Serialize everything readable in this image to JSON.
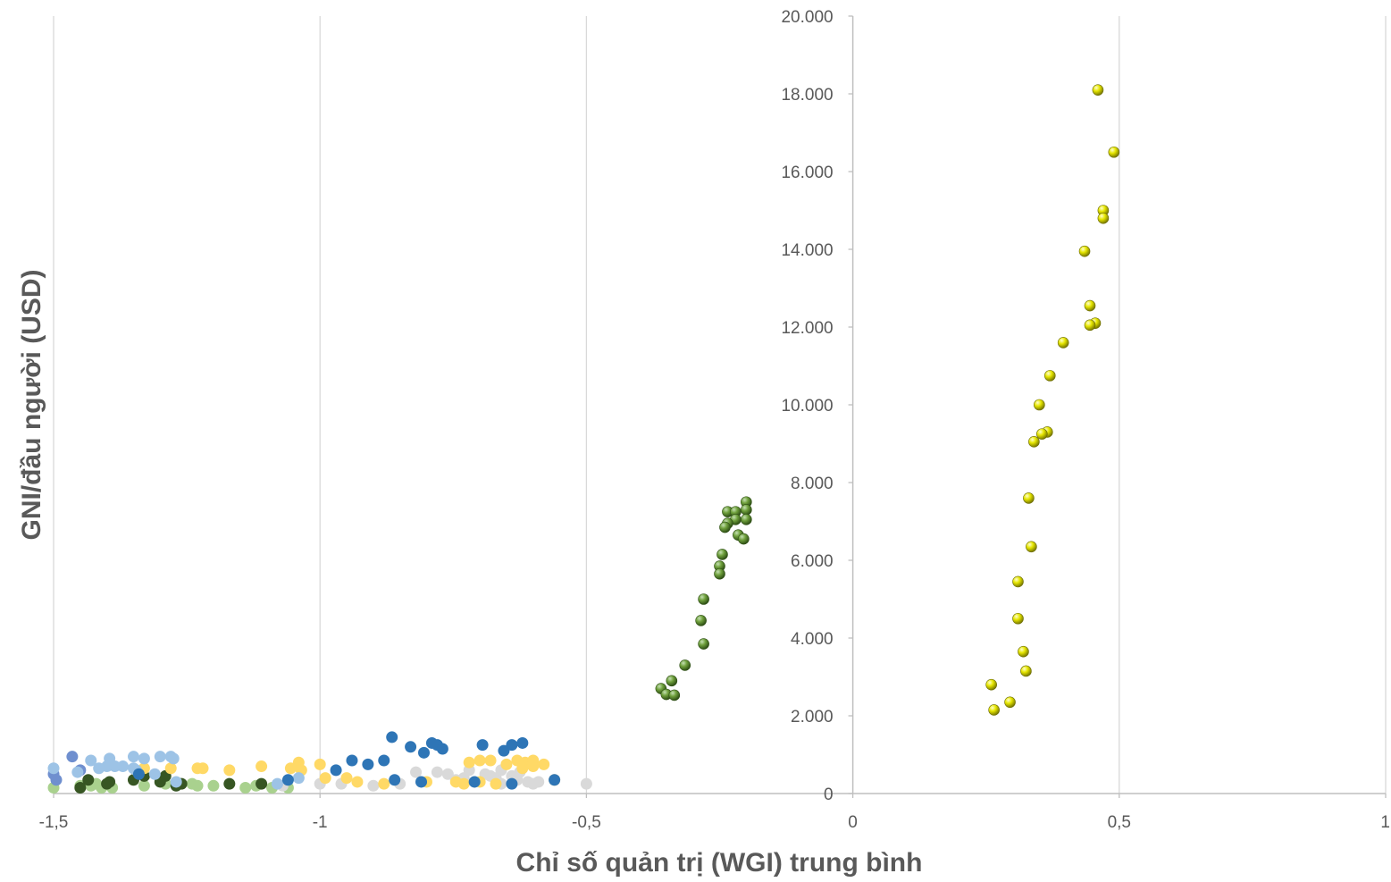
{
  "chart_data": {
    "type": "scatter",
    "title": "",
    "xlabel": "Chỉ số quản trị (WGI) trung bình",
    "ylabel": "GNI/đầu người (USD)",
    "xlim": [
      -1.5,
      1
    ],
    "ylim": [
      0,
      20000
    ],
    "x_ticks": [
      "-1,5",
      "-1",
      "-0,5",
      "0",
      "0,5",
      "1"
    ],
    "y_ticks": [
      "0",
      "2.000",
      "4.000",
      "6.000",
      "8.000",
      "10.000",
      "12.000",
      "14.000",
      "16.000",
      "18.000",
      "20.000"
    ],
    "grid": "vertical",
    "legend": "none",
    "series": [
      {
        "color": "#C9A700",
        "marker": "sphere-yellow",
        "points": [
          [
            0.46,
            18100
          ],
          [
            0.49,
            16500
          ],
          [
            0.47,
            15000
          ],
          [
            0.47,
            14800
          ],
          [
            0.435,
            13950
          ],
          [
            0.445,
            12550
          ],
          [
            0.455,
            12100
          ],
          [
            0.445,
            12050
          ],
          [
            0.395,
            11600
          ],
          [
            0.37,
            10750
          ],
          [
            0.35,
            10000
          ],
          [
            0.365,
            9300
          ],
          [
            0.355,
            9250
          ],
          [
            0.34,
            9050
          ],
          [
            0.33,
            7600
          ],
          [
            0.335,
            6350
          ],
          [
            0.31,
            5450
          ],
          [
            0.31,
            4500
          ],
          [
            0.32,
            3650
          ],
          [
            0.325,
            3150
          ],
          [
            0.26,
            2800
          ],
          [
            0.295,
            2350
          ],
          [
            0.265,
            2150
          ]
        ]
      },
      {
        "color": "#548235",
        "marker": "sphere-green",
        "points": [
          [
            -0.2,
            7500
          ],
          [
            -0.2,
            7300
          ],
          [
            -0.235,
            7250
          ],
          [
            -0.22,
            7250
          ],
          [
            -0.2,
            7050
          ],
          [
            -0.22,
            7050
          ],
          [
            -0.235,
            6950
          ],
          [
            -0.24,
            6850
          ],
          [
            -0.215,
            6650
          ],
          [
            -0.205,
            6550
          ],
          [
            -0.245,
            6150
          ],
          [
            -0.25,
            5850
          ],
          [
            -0.25,
            5650
          ],
          [
            -0.28,
            5000
          ],
          [
            -0.285,
            4450
          ],
          [
            -0.28,
            3850
          ],
          [
            -0.315,
            3300
          ],
          [
            -0.34,
            2900
          ],
          [
            -0.36,
            2700
          ],
          [
            -0.35,
            2550
          ],
          [
            -0.335,
            2530
          ]
        ]
      },
      {
        "color": "#2E75B6",
        "marker": "dot",
        "points": [
          [
            -0.865,
            1450
          ],
          [
            -0.62,
            1300
          ],
          [
            -0.79,
            1300
          ],
          [
            -0.64,
            1250
          ],
          [
            -0.78,
            1250
          ],
          [
            -0.695,
            1250
          ],
          [
            -0.83,
            1200
          ],
          [
            -0.77,
            1150
          ],
          [
            -0.655,
            1100
          ],
          [
            -0.805,
            1050
          ],
          [
            -0.88,
            850
          ],
          [
            -0.94,
            850
          ],
          [
            -0.91,
            750
          ],
          [
            -0.97,
            600
          ],
          [
            -0.56,
            350
          ],
          [
            -0.86,
            350
          ],
          [
            -0.81,
            300
          ],
          [
            -0.64,
            250
          ],
          [
            -0.71,
            300
          ],
          [
            -1.06,
            350
          ],
          [
            -1.34,
            500
          ]
        ]
      },
      {
        "color": "#9DC3E6",
        "marker": "dot",
        "points": [
          [
            -1.35,
            950
          ],
          [
            -1.3,
            950
          ],
          [
            -1.28,
            950
          ],
          [
            -1.395,
            900
          ],
          [
            -1.33,
            900
          ],
          [
            -1.275,
            900
          ],
          [
            -1.43,
            850
          ],
          [
            -1.4,
            700
          ],
          [
            -1.385,
            700
          ],
          [
            -1.37,
            700
          ],
          [
            -1.35,
            650
          ],
          [
            -1.415,
            650
          ],
          [
            -1.455,
            550
          ],
          [
            -1.5,
            650
          ],
          [
            -1.345,
            600
          ],
          [
            -1.31,
            500
          ],
          [
            -1.08,
            250
          ],
          [
            -1.27,
            300
          ],
          [
            -1.04,
            400
          ]
        ]
      },
      {
        "color": "#6F8FCF",
        "marker": "dot",
        "points": [
          [
            -1.465,
            950
          ],
          [
            -1.45,
            600
          ],
          [
            -1.5,
            500
          ],
          [
            -1.495,
            350
          ]
        ]
      },
      {
        "color": "#FFD966",
        "marker": "dot",
        "points": [
          [
            -1.28,
            650
          ],
          [
            -1.23,
            650
          ],
          [
            -1.22,
            650
          ],
          [
            -1.17,
            600
          ],
          [
            -1.11,
            700
          ],
          [
            -1.04,
            800
          ],
          [
            -1.0,
            750
          ],
          [
            -1.055,
            650
          ],
          [
            -1.035,
            600
          ],
          [
            -0.95,
            400
          ],
          [
            -0.93,
            300
          ],
          [
            -0.88,
            250
          ],
          [
            -0.8,
            300
          ],
          [
            -0.745,
            300
          ],
          [
            -0.73,
            250
          ],
          [
            -0.72,
            800
          ],
          [
            -0.7,
            850
          ],
          [
            -0.68,
            850
          ],
          [
            -0.63,
            850
          ],
          [
            -0.615,
            800
          ],
          [
            -0.6,
            850
          ],
          [
            -0.58,
            750
          ],
          [
            -0.6,
            700
          ],
          [
            -0.62,
            650
          ],
          [
            -0.65,
            750
          ],
          [
            -0.56,
            350
          ],
          [
            -0.67,
            250
          ],
          [
            -0.7,
            300
          ],
          [
            -0.99,
            400
          ],
          [
            -1.33,
            650
          ]
        ]
      },
      {
        "color": "#D9D9D9",
        "marker": "dot",
        "points": [
          [
            -0.5,
            250
          ],
          [
            -0.56,
            350
          ],
          [
            -0.6,
            250
          ],
          [
            -0.61,
            300
          ],
          [
            -0.625,
            550
          ],
          [
            -0.64,
            450
          ],
          [
            -0.67,
            400
          ],
          [
            -0.69,
            500
          ],
          [
            -0.72,
            600
          ],
          [
            -0.73,
            400
          ],
          [
            -0.745,
            350
          ],
          [
            -0.78,
            550
          ],
          [
            -0.82,
            550
          ],
          [
            -0.85,
            250
          ],
          [
            -0.9,
            200
          ],
          [
            -0.96,
            250
          ],
          [
            -1.0,
            250
          ],
          [
            -1.07,
            200
          ],
          [
            -0.59,
            300
          ],
          [
            -0.63,
            350
          ],
          [
            -0.66,
            250
          ],
          [
            -0.71,
            300
          ],
          [
            -0.76,
            500
          ],
          [
            -0.66,
            600
          ],
          [
            -0.68,
            450
          ]
        ]
      },
      {
        "color": "#375623",
        "marker": "dot",
        "points": [
          [
            -1.29,
            450
          ],
          [
            -1.33,
            450
          ],
          [
            -1.35,
            350
          ],
          [
            -1.395,
            300
          ],
          [
            -1.435,
            350
          ],
          [
            -1.17,
            250
          ],
          [
            -1.11,
            250
          ],
          [
            -1.26,
            250
          ],
          [
            -1.4,
            250
          ],
          [
            -1.45,
            150
          ],
          [
            -1.3,
            300
          ],
          [
            -1.27,
            200
          ]
        ]
      },
      {
        "color": "#A9D18E",
        "marker": "dot",
        "points": [
          [
            -1.5,
            150
          ],
          [
            -1.45,
            200
          ],
          [
            -1.43,
            200
          ],
          [
            -1.41,
            150
          ],
          [
            -1.39,
            150
          ],
          [
            -1.33,
            200
          ],
          [
            -1.29,
            250
          ],
          [
            -1.24,
            250
          ],
          [
            -1.2,
            200
          ],
          [
            -1.14,
            150
          ],
          [
            -1.12,
            200
          ],
          [
            -1.09,
            150
          ],
          [
            -1.06,
            150
          ],
          [
            -1.23,
            200
          ],
          [
            -1.42,
            250
          ]
        ]
      }
    ]
  }
}
